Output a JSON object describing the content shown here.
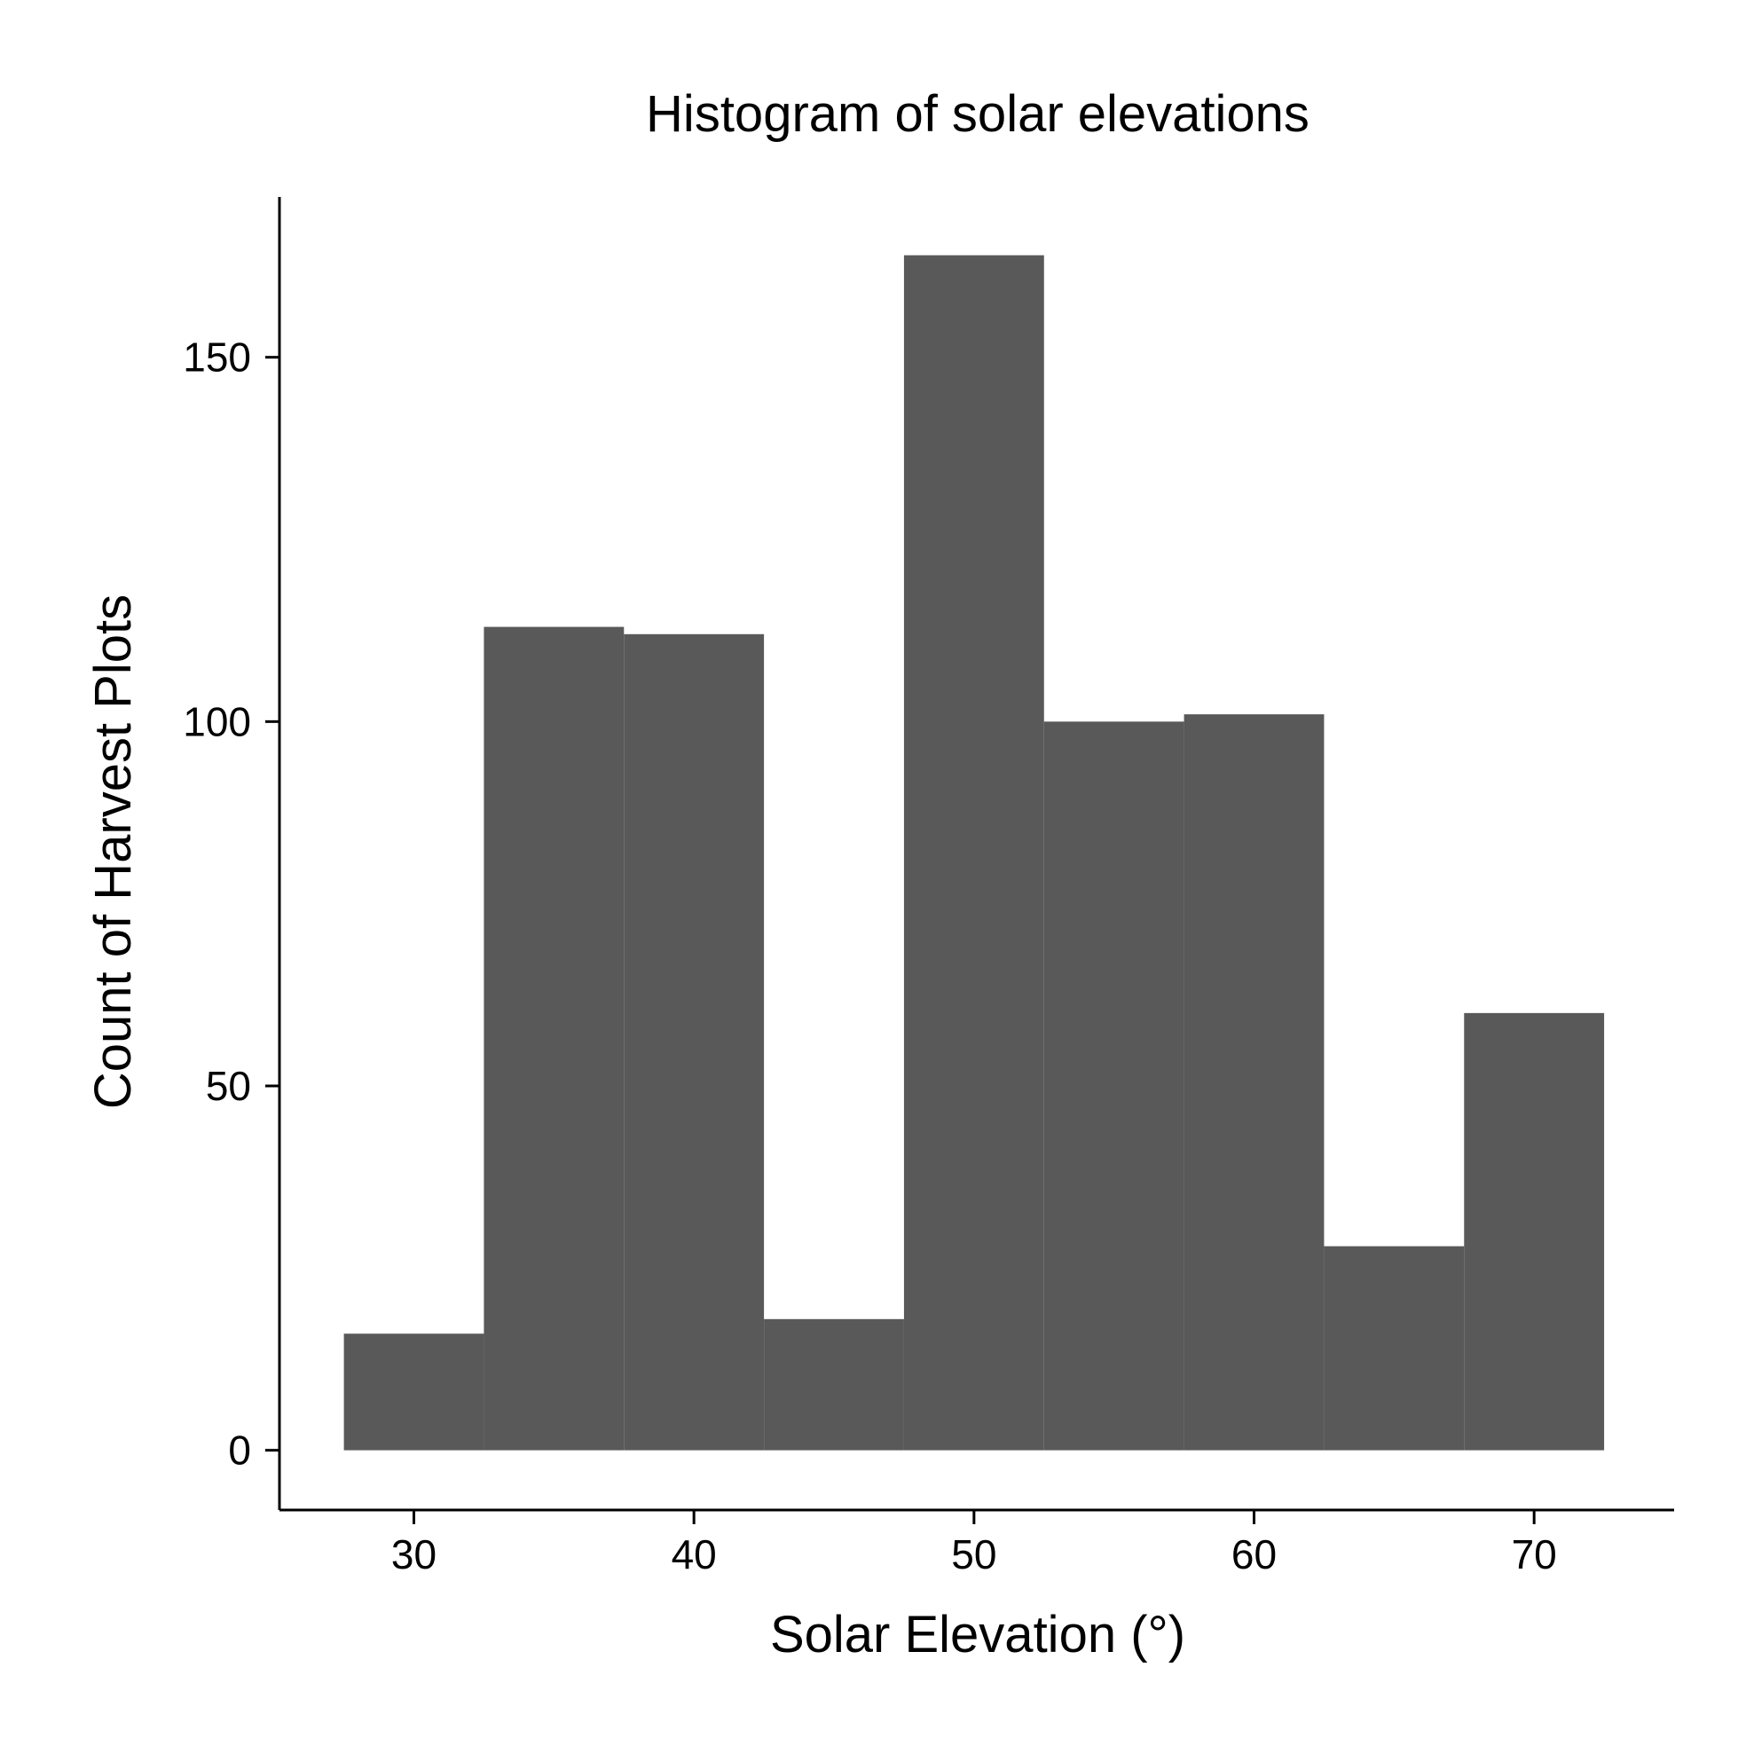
{
  "chart_data": {
    "type": "bar",
    "title": "Histogram of solar elevations",
    "xlabel": "Solar Elevation (°)",
    "ylabel": "Count of Harvest Plots",
    "bin_width": 5,
    "bins": [
      {
        "x0": 27.5,
        "x1": 32.5,
        "count": 16
      },
      {
        "x0": 32.5,
        "x1": 37.5,
        "count": 113
      },
      {
        "x0": 37.5,
        "x1": 42.5,
        "count": 112
      },
      {
        "x0": 42.5,
        "x1": 47.5,
        "count": 18
      },
      {
        "x0": 47.5,
        "x1": 52.5,
        "count": 164
      },
      {
        "x0": 52.5,
        "x1": 57.5,
        "count": 100
      },
      {
        "x0": 57.5,
        "x1": 62.5,
        "count": 101
      },
      {
        "x0": 62.5,
        "x1": 67.5,
        "count": 28
      },
      {
        "x0": 67.5,
        "x1": 72.5,
        "count": 60
      }
    ],
    "xlim": [
      25.2,
      75.0
    ],
    "ylim": [
      -8.2,
      172
    ],
    "x_ticks": [
      30,
      40,
      50,
      60,
      70
    ],
    "y_ticks": [
      0,
      50,
      100,
      150
    ],
    "bar_color": "#595959",
    "grid": false,
    "legend": "none"
  }
}
